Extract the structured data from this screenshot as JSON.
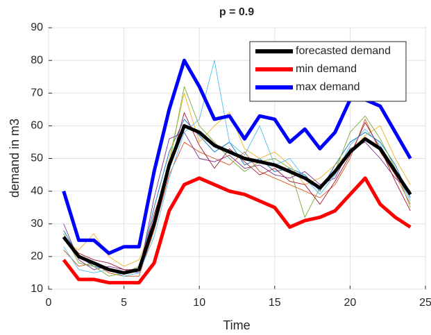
{
  "chart_data": {
    "type": "line",
    "title": "p = 0.9",
    "x_label": "Time",
    "y_label": "demand in m3",
    "x": [
      1,
      2,
      3,
      4,
      5,
      6,
      7,
      8,
      9,
      10,
      11,
      12,
      13,
      14,
      15,
      16,
      17,
      18,
      19,
      20,
      21,
      22,
      23,
      24
    ],
    "xlim": [
      0,
      25
    ],
    "xticks": [
      0,
      5,
      10,
      15,
      20,
      25
    ],
    "ylim": [
      10,
      90
    ],
    "yticks": [
      10,
      20,
      30,
      40,
      50,
      60,
      70,
      80,
      90
    ],
    "grid": true,
    "legend": "top-right",
    "scenarios": [
      {
        "color": "#0072BD",
        "values": [
          28,
          20,
          17,
          16,
          15,
          16,
          35,
          52,
          62,
          57,
          52,
          55,
          48,
          50,
          46,
          47,
          45,
          40,
          48,
          55,
          58,
          55,
          48,
          38
        ]
      },
      {
        "color": "#D95319",
        "values": [
          22,
          17,
          18,
          15,
          14,
          14,
          28,
          45,
          55,
          52,
          50,
          48,
          52,
          46,
          44,
          42,
          40,
          38,
          42,
          50,
          62,
          52,
          45,
          36
        ]
      },
      {
        "color": "#EDB120",
        "values": [
          25,
          22,
          27,
          20,
          17,
          19,
          30,
          50,
          70,
          55,
          60,
          64,
          53,
          50,
          52,
          48,
          42,
          44,
          48,
          52,
          57,
          60,
          50,
          42
        ]
      },
      {
        "color": "#7E2F8E",
        "values": [
          30,
          19,
          16,
          17,
          16,
          15,
          38,
          56,
          58,
          50,
          49,
          51,
          47,
          48,
          45,
          44,
          46,
          42,
          44,
          53,
          55,
          50,
          44,
          40
        ]
      },
      {
        "color": "#77AC30",
        "values": [
          27,
          18,
          17,
          14,
          15,
          17,
          31,
          48,
          72,
          60,
          55,
          50,
          46,
          49,
          50,
          47,
          32,
          41,
          46,
          58,
          63,
          56,
          47,
          35
        ]
      },
      {
        "color": "#4DBEEE",
        "values": [
          23,
          16,
          15,
          16,
          14,
          15,
          26,
          44,
          58,
          62,
          80,
          55,
          51,
          60,
          48,
          50,
          44,
          39,
          45,
          54,
          59,
          54,
          46,
          37
        ]
      },
      {
        "color": "#A2142F",
        "values": [
          26,
          21,
          19,
          18,
          16,
          16,
          33,
          47,
          64,
          54,
          47,
          53,
          49,
          45,
          47,
          43,
          42,
          36,
          43,
          51,
          61,
          53,
          43,
          34
        ]
      }
    ],
    "series": [
      {
        "name": "forecasted demand",
        "color": "#000000",
        "values": [
          26,
          20,
          18,
          16,
          15,
          16,
          30,
          48,
          60,
          58,
          54,
          52,
          50,
          49,
          48,
          46,
          44,
          41,
          46,
          52,
          56,
          53,
          46,
          39
        ]
      },
      {
        "name": "min demand",
        "color": "#ff0000",
        "values": [
          19,
          13,
          13,
          12,
          12,
          12,
          18,
          34,
          42,
          44,
          42,
          40,
          39,
          37,
          35,
          29,
          31,
          32,
          34,
          39,
          44,
          36,
          32,
          29
        ]
      },
      {
        "name": "max demand",
        "color": "#0000ff",
        "values": [
          40,
          25,
          25,
          21,
          23,
          23,
          46,
          65,
          80,
          72,
          62,
          63,
          56,
          63,
          62,
          55,
          59,
          53,
          58,
          68,
          68,
          66,
          58,
          50
        ]
      }
    ]
  }
}
